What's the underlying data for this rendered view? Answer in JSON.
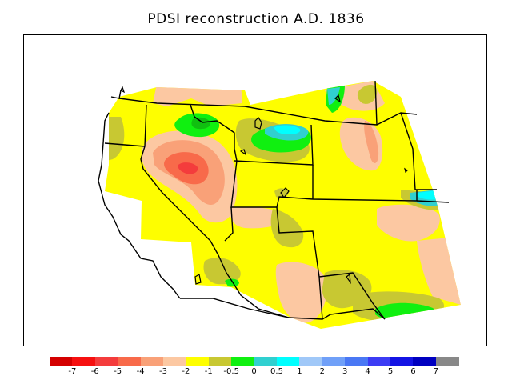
{
  "title": "PDSI reconstruction A.D. 1836",
  "legend": {
    "colors": [
      "#d40000",
      "#f61010",
      "#f43c3c",
      "#f86a4a",
      "#f9a178",
      "#fcc8a2",
      "#fefe00",
      "#c8c832",
      "#10f010",
      "#30d0d0",
      "#00ffff",
      "#a0c8f8",
      "#70a0f8",
      "#4a78f4",
      "#3c3cf4",
      "#1414e4",
      "#0000c0",
      "#888888"
    ],
    "ticks": [
      "-7",
      "-6",
      "-5",
      "-4",
      "-3",
      "-2",
      "-1",
      "-0.5",
      "0",
      "0.5",
      "1",
      "2",
      "3",
      "4",
      "5",
      "6",
      "7"
    ]
  },
  "map": {
    "region": "western United States",
    "colors": {
      "background_in_domain": "#fefe00",
      "dry_light": "#fcc8a2",
      "dry_mid": "#f9a178",
      "dry_strong": "#f86a4a",
      "dry_core": "#f43c3c",
      "near_normal": "#c8c832",
      "wet_light": "#10f010",
      "wet_mid": "#30d0d0",
      "wet_strong": "#00ffff",
      "wet_blue": "#4a78f4"
    }
  }
}
